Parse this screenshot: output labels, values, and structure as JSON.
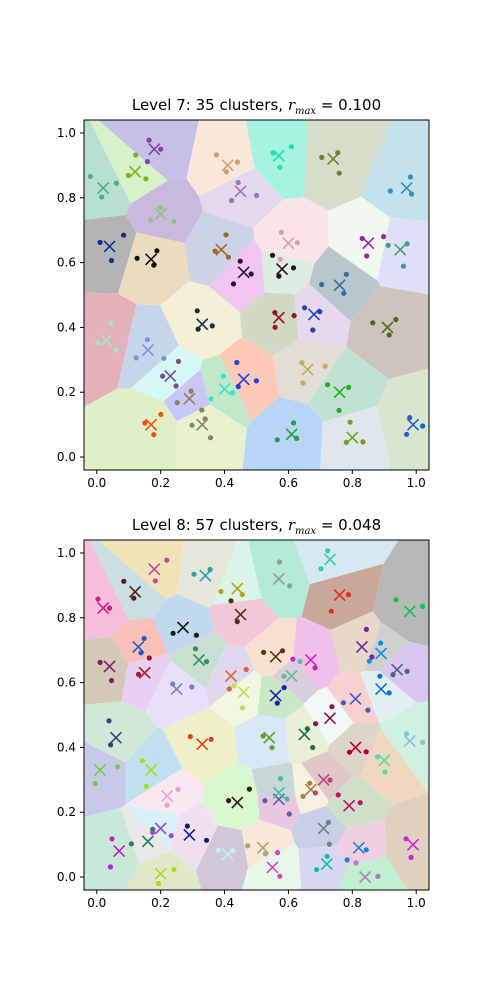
{
  "chart_data": [
    {
      "type": "scatter",
      "title": {
        "text": "Level 7: 35 clusters, ",
        "math_r": "r",
        "math_sub": "max",
        "math_rest": " = 0.100"
      },
      "xticks": [
        "0.0",
        "0.2",
        "0.4",
        "0.6",
        "0.8",
        "1.0"
      ],
      "yticks": [
        "0.0",
        "0.2",
        "0.4",
        "0.6",
        "0.8",
        "1.0"
      ],
      "xlim": [
        -0.04,
        1.04
      ],
      "ylim": [
        -0.04,
        1.04
      ],
      "colors": [
        "#c6c0e6",
        "#f9e7d9",
        "#a6f4df",
        "#d5dec8",
        "#c4e2ec",
        "#d8f1c8",
        "#e3d8ec",
        "#fbe4e8",
        "#b7e0d0",
        "#b4b4b4",
        "#ecdcbf",
        "#cbd3e6",
        "#c9b9df",
        "#efc6f0",
        "#dceee2",
        "#f0f8f0",
        "#dde0f6",
        "#b8c7cc",
        "#e2b2b8",
        "#c6d6ea",
        "#f4f0d7",
        "#d1d8c4",
        "#e6d9ee",
        "#cfc4bd",
        "#d6f8f4",
        "#c8c8f8",
        "#c1e8c8",
        "#fbc9b6",
        "#e2ddd5",
        "#bfe2d1",
        "#dff0c8",
        "#e8f2cd",
        "#b8d4f7",
        "#dfe6ec",
        "#d9e6cf"
      ],
      "centers": [
        {
          "x": 0.18,
          "y": 0.95,
          "mark": "#8040b0"
        },
        {
          "x": 0.41,
          "y": 0.9,
          "mark": "#d49b70"
        },
        {
          "x": 0.57,
          "y": 0.93,
          "mark": "#20e0b0"
        },
        {
          "x": 0.74,
          "y": 0.92,
          "mark": "#708030"
        },
        {
          "x": 0.97,
          "y": 0.83,
          "mark": "#3090c0"
        },
        {
          "x": 0.12,
          "y": 0.88,
          "mark": "#80b020"
        },
        {
          "x": 0.45,
          "y": 0.82,
          "mark": "#a070c8"
        },
        {
          "x": 0.6,
          "y": 0.66,
          "mark": "#d8a0a8"
        },
        {
          "x": 0.02,
          "y": 0.83,
          "mark": "#50b080"
        },
        {
          "x": 0.04,
          "y": 0.65,
          "mark": "#103090"
        },
        {
          "x": 0.17,
          "y": 0.61,
          "mark": "#101010"
        },
        {
          "x": 0.39,
          "y": 0.64,
          "mark": "#a06820"
        },
        {
          "x": 0.2,
          "y": 0.75,
          "mark": "#90c080"
        },
        {
          "x": 0.46,
          "y": 0.57,
          "mark": "#301040"
        },
        {
          "x": 0.58,
          "y": 0.58,
          "mark": "#301010"
        },
        {
          "x": 0.85,
          "y": 0.66,
          "mark": "#a020b0"
        },
        {
          "x": 0.95,
          "y": 0.64,
          "mark": "#40a080"
        },
        {
          "x": 0.76,
          "y": 0.53,
          "mark": "#3070a0"
        },
        {
          "x": 0.03,
          "y": 0.36,
          "mark": "#a0e8c8"
        },
        {
          "x": 0.16,
          "y": 0.33,
          "mark": "#8090e0"
        },
        {
          "x": 0.33,
          "y": 0.41,
          "mark": "#103040"
        },
        {
          "x": 0.57,
          "y": 0.43,
          "mark": "#a01020"
        },
        {
          "x": 0.68,
          "y": 0.44,
          "mark": "#2040c0"
        },
        {
          "x": 0.91,
          "y": 0.4,
          "mark": "#506820"
        },
        {
          "x": 0.23,
          "y": 0.25,
          "mark": "#705090"
        },
        {
          "x": 0.29,
          "y": 0.18,
          "mark": "#908060"
        },
        {
          "x": 0.4,
          "y": 0.21,
          "mark": "#30e8d0"
        },
        {
          "x": 0.46,
          "y": 0.24,
          "mark": "#2040e0"
        },
        {
          "x": 0.66,
          "y": 0.27,
          "mark": "#c0b050"
        },
        {
          "x": 0.76,
          "y": 0.2,
          "mark": "#20b020"
        },
        {
          "x": 0.17,
          "y": 0.1,
          "mark": "#f05010"
        },
        {
          "x": 0.33,
          "y": 0.1,
          "mark": "#908070"
        },
        {
          "x": 0.61,
          "y": 0.07,
          "mark": "#20a040"
        },
        {
          "x": 0.8,
          "y": 0.06,
          "mark": "#70a020"
        },
        {
          "x": 0.99,
          "y": 0.1,
          "mark": "#2060d0"
        }
      ]
    },
    {
      "type": "scatter",
      "title": {
        "text": "Level 8: 57 clusters, ",
        "math_r": "r",
        "math_sub": "max",
        "math_rest": " = 0.048"
      },
      "xticks": [
        "0.0",
        "0.2",
        "0.4",
        "0.6",
        "0.8",
        "1.0"
      ],
      "yticks": [
        "0.0",
        "0.2",
        "0.4",
        "0.6",
        "0.8",
        "1.0"
      ],
      "xlim": [
        -0.04,
        1.04
      ],
      "ylim": [
        -0.04,
        1.04
      ],
      "colors": [
        "#f5bfdc",
        "#c9dfe3",
        "#f0e4b6",
        "#e4e8dc",
        "#d7f5ea",
        "#b3ebd6",
        "#d8e8f0",
        "#c8a898",
        "#b8b8b8",
        "#d4c8b8",
        "#f8c0b8",
        "#e8d0f0",
        "#c0d8f0",
        "#c8e0d0",
        "#f0c8d8",
        "#e0d8ec",
        "#f8e0d0",
        "#f0c0e8",
        "#e8d8c8",
        "#d0d0d0",
        "#d8c8f0",
        "#e8e0f8",
        "#f0f8e0",
        "#c8e8c8",
        "#d8d0e0",
        "#f8d0d0",
        "#e0f0f0",
        "#d0e8d8",
        "#c8c8e8",
        "#f0f0c8",
        "#d8e8f8",
        "#e8f0d8",
        "#f0f8f8",
        "#ddd6c8",
        "#d0f0e0",
        "#c0e0f0",
        "#f8e8f0",
        "#d8f8d0",
        "#e8c8e0",
        "#c8d8d8",
        "#f8f0e0",
        "#e0c8c8",
        "#d0e0c8",
        "#f0d8c0",
        "#c8d0e8",
        "#e8e8e8",
        "#d8f0f8",
        "#f0e0f0",
        "#c8e8d8",
        "#e0e8c8",
        "#d0c8d8",
        "#f8e8d8",
        "#e8f8e8",
        "#d8d8f0",
        "#f0d0e0",
        "#c0f0d0",
        "#e0d0c0"
      ],
      "centers": [
        {
          "x": 0.02,
          "y": 0.83,
          "mark": "#d02080"
        },
        {
          "x": 0.12,
          "y": 0.88,
          "mark": "#502010"
        },
        {
          "x": 0.18,
          "y": 0.95,
          "mark": "#d040a0"
        },
        {
          "x": 0.34,
          "y": 0.93,
          "mark": "#30a0a0"
        },
        {
          "x": 0.44,
          "y": 0.89,
          "mark": "#c0a010"
        },
        {
          "x": 0.57,
          "y": 0.92,
          "mark": "#90a090"
        },
        {
          "x": 0.73,
          "y": 0.98,
          "mark": "#30d0a0"
        },
        {
          "x": 0.76,
          "y": 0.87,
          "mark": "#e03020"
        },
        {
          "x": 0.98,
          "y": 0.82,
          "mark": "#10c060"
        },
        {
          "x": 0.04,
          "y": 0.65,
          "mark": "#802060"
        },
        {
          "x": 0.13,
          "y": 0.71,
          "mark": "#2060c0"
        },
        {
          "x": 0.15,
          "y": 0.63,
          "mark": "#b01030"
        },
        {
          "x": 0.27,
          "y": 0.77,
          "mark": "#102010"
        },
        {
          "x": 0.32,
          "y": 0.67,
          "mark": "#309060"
        },
        {
          "x": 0.45,
          "y": 0.81,
          "mark": "#503010"
        },
        {
          "x": 0.42,
          "y": 0.62,
          "mark": "#e06040"
        },
        {
          "x": 0.56,
          "y": 0.68,
          "mark": "#603010"
        },
        {
          "x": 0.67,
          "y": 0.67,
          "mark": "#d020c0"
        },
        {
          "x": 0.83,
          "y": 0.71,
          "mark": "#8020a0"
        },
        {
          "x": 0.89,
          "y": 0.69,
          "mark": "#1090e0"
        },
        {
          "x": 0.94,
          "y": 0.64,
          "mark": "#506080"
        },
        {
          "x": 0.25,
          "y": 0.58,
          "mark": "#8080c0"
        },
        {
          "x": 0.46,
          "y": 0.57,
          "mark": "#c0e050"
        },
        {
          "x": 0.56,
          "y": 0.56,
          "mark": "#2020a0"
        },
        {
          "x": 0.61,
          "y": 0.62,
          "mark": "#60c090"
        },
        {
          "x": 0.81,
          "y": 0.55,
          "mark": "#4060c0"
        },
        {
          "x": 0.89,
          "y": 0.58,
          "mark": "#1070e0"
        },
        {
          "x": 0.06,
          "y": 0.43,
          "mark": "#404080"
        },
        {
          "x": 0.01,
          "y": 0.33,
          "mark": "#70d040"
        },
        {
          "x": 0.33,
          "y": 0.41,
          "mark": "#e04020"
        },
        {
          "x": 0.54,
          "y": 0.43,
          "mark": "#60a030"
        },
        {
          "x": 0.65,
          "y": 0.44,
          "mark": "#207040"
        },
        {
          "x": 0.73,
          "y": 0.49,
          "mark": "#901040"
        },
        {
          "x": 0.81,
          "y": 0.4,
          "mark": "#c00020"
        },
        {
          "x": 0.98,
          "y": 0.42,
          "mark": "#80c8d0"
        },
        {
          "x": 0.17,
          "y": 0.33,
          "mark": "#a0e020"
        },
        {
          "x": 0.22,
          "y": 0.25,
          "mark": "#f0a0c0"
        },
        {
          "x": 0.44,
          "y": 0.23,
          "mark": "#302010"
        },
        {
          "x": 0.57,
          "y": 0.24,
          "mark": "#6060a0"
        },
        {
          "x": 0.57,
          "y": 0.26,
          "mark": "#40c0a0"
        },
        {
          "x": 0.67,
          "y": 0.27,
          "mark": "#b08040"
        },
        {
          "x": 0.71,
          "y": 0.3,
          "mark": "#c04080"
        },
        {
          "x": 0.79,
          "y": 0.22,
          "mark": "#c01060"
        },
        {
          "x": 0.9,
          "y": 0.36,
          "mark": "#50e0a0"
        },
        {
          "x": 0.71,
          "y": 0.15,
          "mark": "#708080"
        },
        {
          "x": 0.16,
          "y": 0.11,
          "mark": "#208050"
        },
        {
          "x": 0.2,
          "y": 0.15,
          "mark": "#a040e0"
        },
        {
          "x": 0.29,
          "y": 0.13,
          "mark": "#102080"
        },
        {
          "x": 0.07,
          "y": 0.08,
          "mark": "#c020d0"
        },
        {
          "x": 0.2,
          "y": 0.01,
          "mark": "#a0e020"
        },
        {
          "x": 0.41,
          "y": 0.07,
          "mark": "#c0f0f0"
        },
        {
          "x": 0.52,
          "y": 0.09,
          "mark": "#a8a870"
        },
        {
          "x": 0.55,
          "y": 0.03,
          "mark": "#e040c0"
        },
        {
          "x": 0.72,
          "y": 0.04,
          "mark": "#10c0a0"
        },
        {
          "x": 0.82,
          "y": 0.09,
          "mark": "#2080e0"
        },
        {
          "x": 0.84,
          "y": 0.0,
          "mark": "#b080c0"
        },
        {
          "x": 0.99,
          "y": 0.1,
          "mark": "#d020e0"
        }
      ]
    }
  ]
}
